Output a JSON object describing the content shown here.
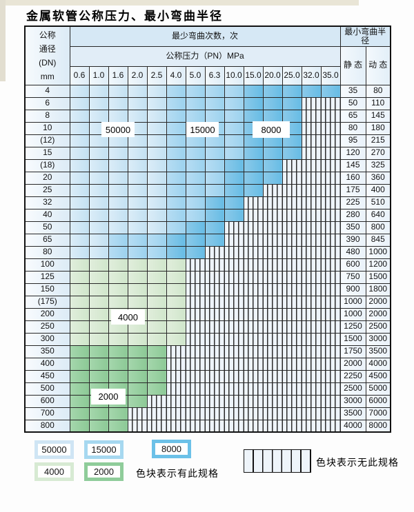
{
  "page": {
    "title": "金属软管公称压力、最小弯曲半径"
  },
  "table": {
    "corner_lines": [
      "公称",
      "通径",
      "(DN)",
      "mm"
    ],
    "top_header": "最少弯曲次数，次",
    "pressure_header": "公称压力（PN）MPa",
    "pressure_columns": [
      "0.6",
      "1.0",
      "1.6",
      "2.0",
      "2.5",
      "4.0",
      "5.0",
      "6.3",
      "10.0",
      "15.0",
      "20.0",
      "25.0",
      "32.0",
      "35.0"
    ],
    "radius_header": "最小弯曲半径",
    "static_header": "静 态",
    "dynamic_header": "动 态",
    "cell_code_meanings": {
      "L": "50000次",
      "M": "15000次",
      "D": "8000次",
      "G": "4000次",
      "E": "2000次",
      "H": "无此规格"
    },
    "rows": [
      {
        "dn": "4",
        "cells": "LLLLLMMMMDDDDD",
        "static": "35",
        "dynamic": "80"
      },
      {
        "dn": "6",
        "cells": "LLLLLMMMMDDDHH",
        "static": "50",
        "dynamic": "110"
      },
      {
        "dn": "8",
        "cells": "LLLLLMMMMDDDHH",
        "static": "65",
        "dynamic": "145"
      },
      {
        "dn": "10",
        "cells": "LLLLLMMMMDDDHH",
        "static": "80",
        "dynamic": "180"
      },
      {
        "dn": "(12)",
        "cells": "LLLLLMMMMDDDHH",
        "static": "95",
        "dynamic": "215"
      },
      {
        "dn": "15",
        "cells": "LLLLLMMMMDDDHH",
        "static": "120",
        "dynamic": "270"
      },
      {
        "dn": "(18)",
        "cells": "LLLLLMMMDDDHHH",
        "static": "145",
        "dynamic": "325"
      },
      {
        "dn": "20",
        "cells": "LLLLLMMMDDDHHH",
        "static": "160",
        "dynamic": "360"
      },
      {
        "dn": "25",
        "cells": "LLLLLMMMDDHHHH",
        "static": "175",
        "dynamic": "400"
      },
      {
        "dn": "32",
        "cells": "LLLLLMMDDHHHHH",
        "static": "225",
        "dynamic": "510"
      },
      {
        "dn": "40",
        "cells": "LLLLLMMDDHHHHH",
        "static": "280",
        "dynamic": "640"
      },
      {
        "dn": "50",
        "cells": "LLLLLMDDHHHHHH",
        "static": "350",
        "dynamic": "800"
      },
      {
        "dn": "65",
        "cells": "LLMMMDDDHHHHHH",
        "static": "390",
        "dynamic": "845"
      },
      {
        "dn": "80",
        "cells": "LLMMMDDHHHHHHH",
        "static": "480",
        "dynamic": "1000"
      },
      {
        "dn": "100",
        "cells": "GGGGGGHHHHHHHH",
        "static": "600",
        "dynamic": "1200"
      },
      {
        "dn": "125",
        "cells": "GGGGGGHHHHHHHH",
        "static": "750",
        "dynamic": "1500"
      },
      {
        "dn": "150",
        "cells": "GGGGGGHHHHHHHH",
        "static": "900",
        "dynamic": "1800"
      },
      {
        "dn": "(175)",
        "cells": "GGGGGGHHHHHHHH",
        "static": "1000",
        "dynamic": "2000"
      },
      {
        "dn": "200",
        "cells": "GGGGGGHHHHHHHH",
        "static": "1000",
        "dynamic": "2000"
      },
      {
        "dn": "250",
        "cells": "GGGGGGHHHHHHHH",
        "static": "1250",
        "dynamic": "2500"
      },
      {
        "dn": "300",
        "cells": "GGGGGGHHHHHHHH",
        "static": "1500",
        "dynamic": "3000"
      },
      {
        "dn": "350",
        "cells": "EEEEEHHHHHHHHH",
        "static": "1750",
        "dynamic": "3500"
      },
      {
        "dn": "400",
        "cells": "EEEEEHHHHHHHHH",
        "static": "2000",
        "dynamic": "4000"
      },
      {
        "dn": "450",
        "cells": "EEEEEHHHHHHHHH",
        "static": "2250",
        "dynamic": "4500"
      },
      {
        "dn": "500",
        "cells": "EEEEEHHHHHHHHH",
        "static": "2500",
        "dynamic": "5000"
      },
      {
        "dn": "600",
        "cells": "EEEEHHHHHHHHHH",
        "static": "3000",
        "dynamic": "6000"
      },
      {
        "dn": "700",
        "cells": "EEEHHHHHHHHHHH",
        "static": "3500",
        "dynamic": "7000"
      },
      {
        "dn": "800",
        "cells": "EEEHHHHHHHHHHH",
        "static": "4000",
        "dynamic": "8000"
      }
    ]
  },
  "overlays": [
    {
      "key": "50000",
      "label": "50000"
    },
    {
      "key": "15000",
      "label": "15000"
    },
    {
      "key": "8000",
      "label": "8000"
    },
    {
      "key": "4000",
      "label": "4000"
    },
    {
      "key": "2000",
      "label": "2000"
    }
  ],
  "legend": {
    "swatches": [
      {
        "key": "50000",
        "label": "50000",
        "color": "#cfe5f4"
      },
      {
        "key": "15000",
        "label": "15000",
        "color": "#a6d8f0"
      },
      {
        "key": "8000",
        "label": "8000",
        "color": "#6cc1e8"
      },
      {
        "key": "4000",
        "label": "4000",
        "color": "#d7ead3"
      },
      {
        "key": "2000",
        "label": "2000",
        "color": "#8fcc9a"
      }
    ],
    "available_text": "色块表示有此规格",
    "unavailable_text": "色块表示无此规格"
  },
  "colors": {
    "cycle_50000": "#cfe5f4",
    "cycle_15000": "#a6d8f0",
    "cycle_8000": "#6cc1e8",
    "cycle_4000": "#d7ead3",
    "cycle_2000": "#8fcc9a",
    "hatch_bg": "#eef4fa",
    "header_bg": "#d6e8f5",
    "grid_line": "#262626"
  }
}
